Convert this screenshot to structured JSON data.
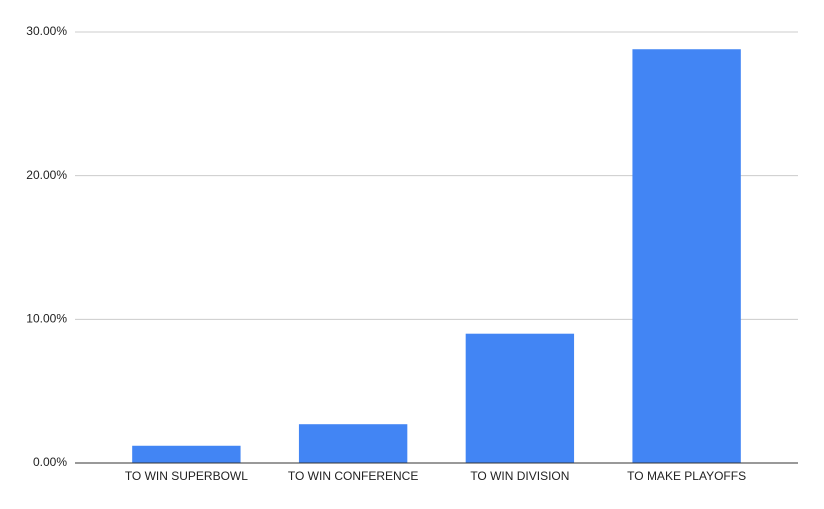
{
  "chart_data": {
    "type": "bar",
    "categories": [
      "TO WIN SUPERBOWL",
      "TO WIN CONFERENCE",
      "TO WIN DIVISION",
      "TO MAKE PLAYOFFS"
    ],
    "values": [
      1.2,
      2.7,
      9.0,
      28.8
    ],
    "color": "#4285f4",
    "ylim": [
      0,
      30
    ],
    "yticks": [
      {
        "value": 0,
        "label": "0.00%"
      },
      {
        "value": 10,
        "label": "10.00%"
      },
      {
        "value": 20,
        "label": "20.00%"
      },
      {
        "value": 30,
        "label": "30.00%"
      }
    ],
    "grid": true
  }
}
